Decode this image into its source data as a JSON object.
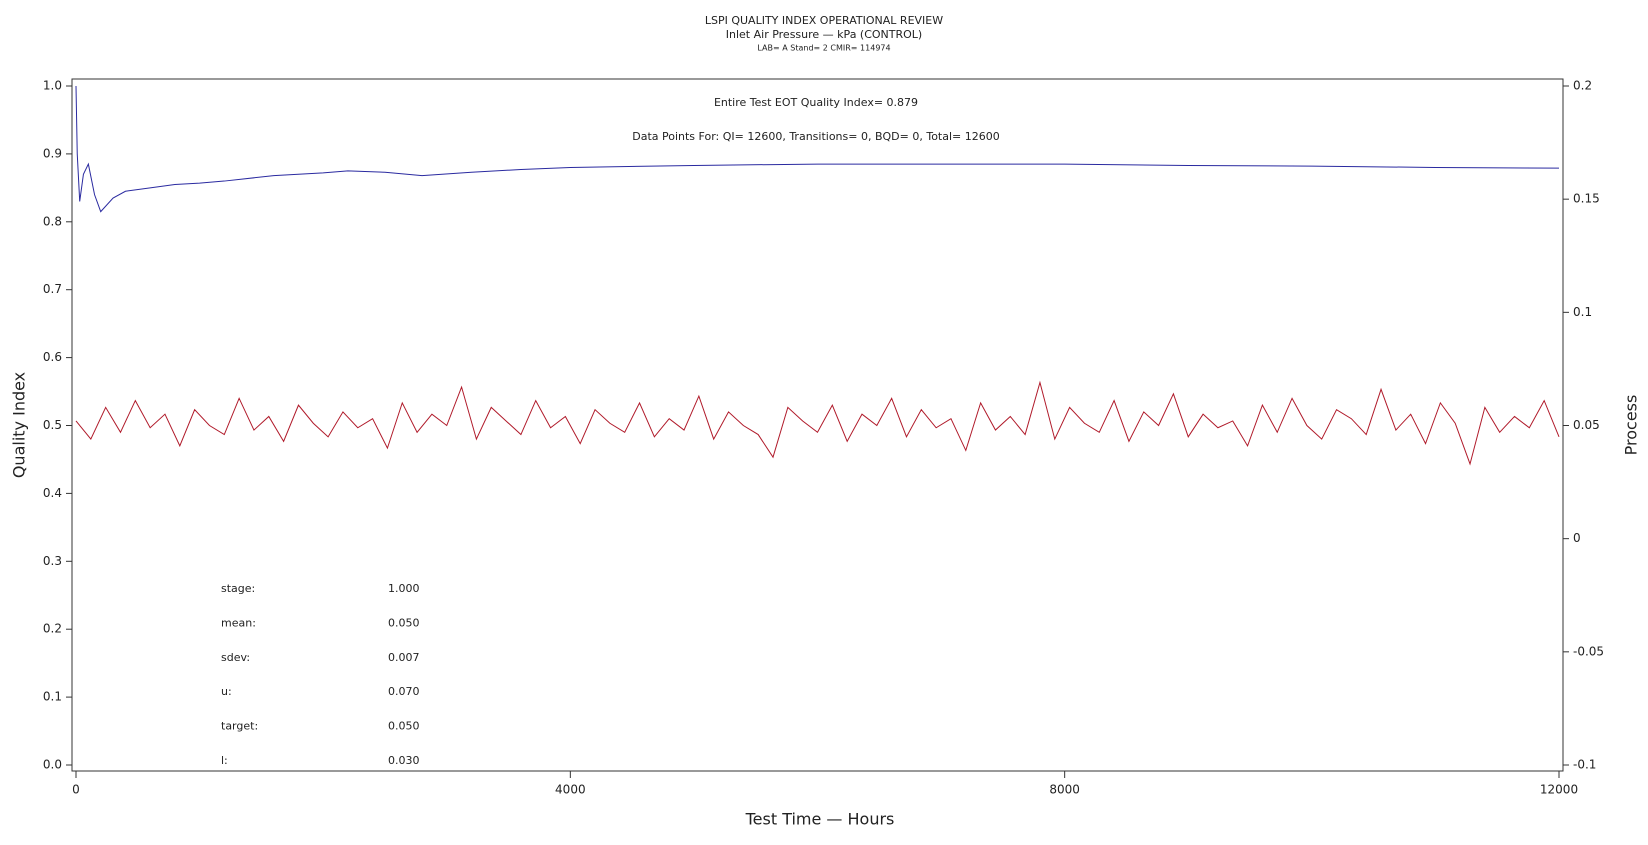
{
  "chart_data": {
    "type": "line",
    "title": "LSPI QUALITY INDEX OPERATIONAL REVIEW",
    "subtitle": "Inlet Air Pressure — kPa (CONTROL)",
    "subsubtitle": "LAB= A Stand= 2 CMIR= 114974",
    "annotations": [
      "Entire Test EOT Quality Index=  0.879",
      "Data Points For: QI= 12600, Transitions=     0, BQD=     0, Total= 12600"
    ],
    "stats": [
      {
        "label": "stage:",
        "value": "1.000"
      },
      {
        "label": "mean:",
        "value": "0.050"
      },
      {
        "label": "sdev:",
        "value": "0.007"
      },
      {
        "label": "u:",
        "value": "0.070"
      },
      {
        "label": "target:",
        "value": "0.050"
      },
      {
        "label": "l:",
        "value": "0.030"
      }
    ],
    "xlabel": "Test Time — Hours",
    "ylabel": "Quality Index",
    "y2label": "Process",
    "xlim": [
      0,
      12000
    ],
    "xticks": [
      0,
      4000,
      8000,
      12000
    ],
    "ylim": [
      0,
      1
    ],
    "yticks": [
      {
        "value": 0,
        "label": "0.0"
      },
      0.1,
      0.2,
      0.3,
      0.4,
      0.5,
      0.6,
      0.7,
      0.8,
      0.9,
      {
        "value": 1,
        "label": "1.0"
      }
    ],
    "y2lim": [
      -0.1,
      0.2
    ],
    "y2ticks": [
      -0.1,
      -0.05,
      0,
      0.05,
      0.1,
      0.15,
      0.2
    ],
    "series": [
      {
        "color": "#2a2aa0",
        "axis": "y",
        "x": [
          0,
          10,
          30,
          60,
          100,
          150,
          200,
          300,
          400,
          600,
          800,
          1000,
          1200,
          1600,
          2000,
          2200,
          2500,
          2800,
          3200,
          3600,
          4000,
          5000,
          6000,
          7000,
          8000,
          9000,
          10000,
          11000,
          12000
        ],
        "values": [
          1.0,
          0.9,
          0.83,
          0.87,
          0.885,
          0.84,
          0.815,
          0.835,
          0.845,
          0.85,
          0.855,
          0.857,
          0.86,
          0.868,
          0.872,
          0.875,
          0.873,
          0.868,
          0.873,
          0.877,
          0.88,
          0.883,
          0.885,
          0.885,
          0.885,
          0.883,
          0.882,
          0.88,
          0.879
        ]
      },
      {
        "color": "#b01a2a",
        "axis": "y2",
        "x": [
          0,
          120,
          240,
          360,
          480,
          600,
          720,
          840,
          960,
          1080,
          1200,
          1320,
          1440,
          1560,
          1680,
          1800,
          1920,
          2040,
          2160,
          2280,
          2400,
          2520,
          2640,
          2760,
          2880,
          3000,
          3120,
          3240,
          3360,
          3480,
          3600,
          3720,
          3840,
          3960,
          4080,
          4200,
          4320,
          4440,
          4560,
          4680,
          4800,
          4920,
          5040,
          5160,
          5280,
          5400,
          5520,
          5640,
          5760,
          5880,
          6000,
          6120,
          6240,
          6360,
          6480,
          6600,
          6720,
          6840,
          6960,
          7080,
          7200,
          7320,
          7440,
          7560,
          7680,
          7800,
          7920,
          8040,
          8160,
          8280,
          8400,
          8520,
          8640,
          8760,
          8880,
          9000,
          9120,
          9240,
          9360,
          9480,
          9600,
          9720,
          9840,
          9960,
          10080,
          10200,
          10320,
          10440,
          10560,
          10680,
          10800,
          10920,
          11040,
          11160,
          11280,
          11400,
          11520,
          11640,
          11760,
          11880,
          12000
        ],
        "values": [
          0.052,
          0.044,
          0.058,
          0.047,
          0.061,
          0.049,
          0.055,
          0.041,
          0.057,
          0.05,
          0.046,
          0.062,
          0.048,
          0.054,
          0.043,
          0.059,
          0.051,
          0.045,
          0.056,
          0.049,
          0.053,
          0.04,
          0.06,
          0.047,
          0.055,
          0.05,
          0.067,
          0.044,
          0.058,
          0.052,
          0.046,
          0.061,
          0.049,
          0.054,
          0.042,
          0.057,
          0.051,
          0.047,
          0.06,
          0.045,
          0.053,
          0.048,
          0.063,
          0.044,
          0.056,
          0.05,
          0.046,
          0.036,
          0.058,
          0.052,
          0.047,
          0.059,
          0.043,
          0.055,
          0.05,
          0.062,
          0.045,
          0.057,
          0.049,
          0.053,
          0.039,
          0.06,
          0.048,
          0.054,
          0.046,
          0.069,
          0.044,
          0.058,
          0.051,
          0.047,
          0.061,
          0.043,
          0.056,
          0.05,
          0.064,
          0.045,
          0.055,
          0.049,
          0.052,
          0.041,
          0.059,
          0.047,
          0.062,
          0.05,
          0.044,
          0.057,
          0.053,
          0.046,
          0.066,
          0.048,
          0.055,
          0.042,
          0.06,
          0.051,
          0.033,
          0.058,
          0.047,
          0.054,
          0.049,
          0.061,
          0.045
        ]
      }
    ]
  }
}
